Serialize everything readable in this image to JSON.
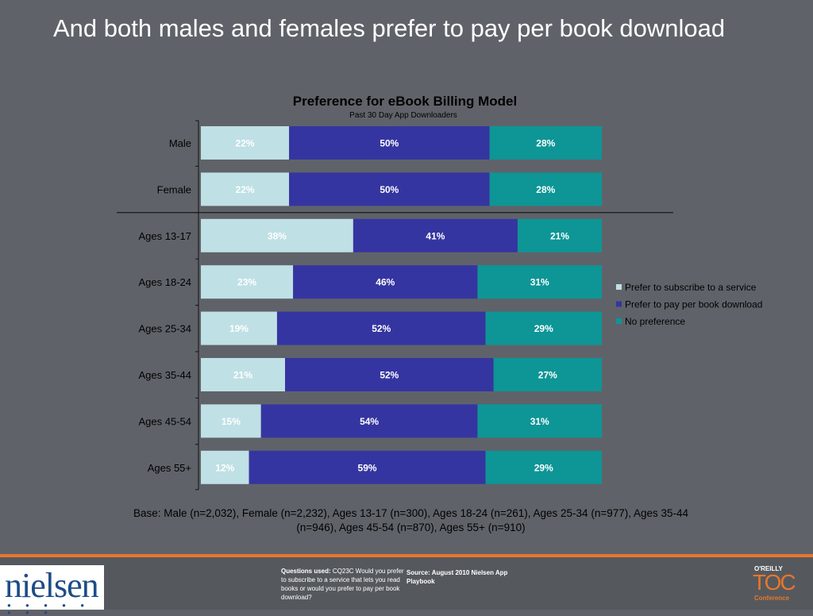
{
  "slide": {
    "title": "And both males and females prefer to pay per book download",
    "base_note": "Base: Male (n=2,032), Female (n=2,232), Ages 13-17 (n=300), Ages 18-24 (n=261), Ages 25-34 (n=977), Ages 35-44 (n=946), Ages 45-54 (n=870), Ages 55+ (n=910)"
  },
  "footer": {
    "questions_label": "Questions used:",
    "questions_text": " CQ23C Would you prefer to subscribe to a service that lets you read books or would you prefer to pay per book download?",
    "source": "Source:  August 2010 Nielsen App Playbook",
    "nielsen_logo": "nielsen",
    "nielsen_dots": "● ● ● ● ● ● ● ●",
    "toc_publisher": "O'REILLY",
    "toc_word": "TOC",
    "toc_conference": "Conference"
  },
  "chart_data": {
    "type": "bar",
    "orientation": "horizontal",
    "stacked": true,
    "title": "Preference for eBook Billing Model",
    "subtitle": "Past 30 Day App Downloaders",
    "categories": [
      "Male",
      "Female",
      "Ages 13-17",
      "Ages 18-24",
      "Ages 25-34",
      "Ages 35-44",
      "Ages 45-54",
      "Ages 55+"
    ],
    "series": [
      {
        "name": "Prefer to subscribe to a service",
        "color": "#bfe0e5",
        "label_color": "#ffffff",
        "values": [
          22,
          22,
          38,
          23,
          19,
          21,
          15,
          12
        ]
      },
      {
        "name": "Prefer to pay per book download",
        "color": "#3535a1",
        "label_color": "#ffffff",
        "values": [
          50,
          50,
          41,
          46,
          52,
          52,
          54,
          59
        ]
      },
      {
        "name": "No preference",
        "color": "#0e9596",
        "label_color": "#ffffff",
        "values": [
          28,
          28,
          21,
          31,
          29,
          27,
          31,
          29
        ]
      }
    ],
    "value_suffix": "%",
    "xlim": [
      0,
      100
    ],
    "legend_position": "right",
    "grid": false,
    "divider_after_category": "Female"
  }
}
